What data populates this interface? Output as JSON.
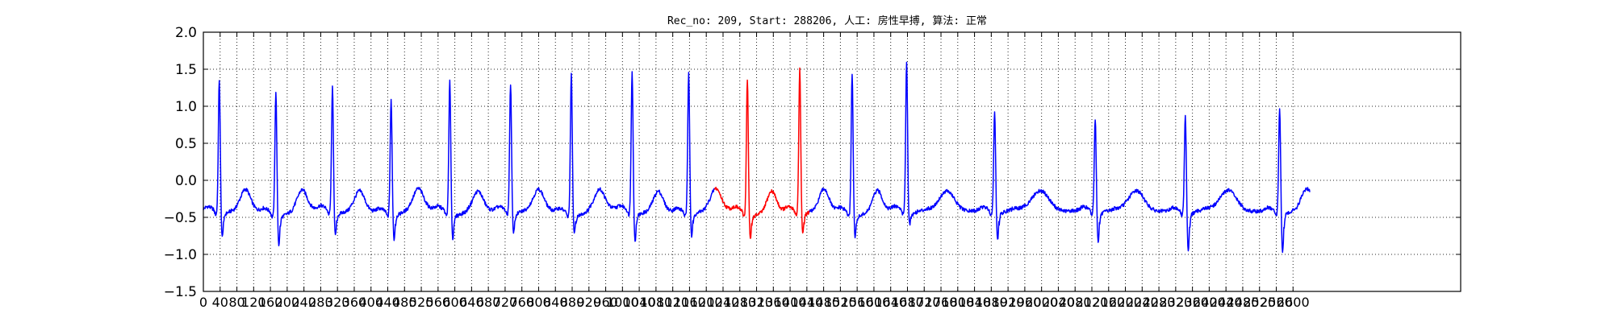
{
  "chart_data": {
    "type": "line",
    "title": "Rec_no: 209, Start: 288206, 人工: 房性早搏, 算法: 正常",
    "xlabel": "",
    "ylabel": "",
    "xlim": [
      0,
      3000
    ],
    "ylim": [
      -1.5,
      2.0
    ],
    "grid": true,
    "x_ticks": [
      0,
      40,
      80,
      120,
      160,
      200,
      240,
      280,
      320,
      360,
      400,
      440,
      480,
      520,
      560,
      600,
      640,
      680,
      720,
      760,
      800,
      840,
      880,
      920,
      960,
      1000,
      1040,
      1080,
      1120,
      1160,
      1200,
      1240,
      1280,
      1320,
      1360,
      1400,
      1440,
      1480,
      1520,
      1560,
      1600,
      1640,
      1680,
      1720,
      1760,
      1800,
      1840,
      1880,
      1920,
      1960,
      2000,
      2040,
      2080,
      2120,
      2160,
      2200,
      2240,
      2280,
      2320,
      2360,
      2400,
      2440,
      2480,
      2520,
      2560,
      2600
    ],
    "x_tick_labels": [
      "0",
      "40",
      "80",
      "120",
      "160",
      "200",
      "240",
      "280",
      "320",
      "360",
      "400",
      "440",
      "480",
      "520",
      "560",
      "600",
      "640",
      "680",
      "720",
      "760",
      "800",
      "840",
      "880",
      "920",
      "960",
      "1000",
      "1040",
      "1080",
      "1120",
      "1160",
      "1200",
      "1240",
      "1280",
      "1320",
      "1360",
      "1400",
      "1440",
      "1480",
      "1520",
      "1560",
      "1600",
      "1640",
      "1680",
      "1720",
      "1760",
      "1800",
      "1840",
      "1880",
      "1920",
      "1960",
      "2000",
      "2040",
      "2080",
      "2120",
      "2160",
      "2200",
      "2240",
      "2280",
      "2320",
      "2360",
      "2400",
      "2440",
      "2480",
      "2520",
      "2560",
      "2600"
    ],
    "y_ticks": [
      -1.5,
      -1.0,
      -0.5,
      0.0,
      0.5,
      1.0,
      1.5,
      2.0
    ],
    "y_tick_labels": [
      "−1.5",
      "−1.0",
      "−0.5",
      "0.0",
      "0.5",
      "1.0",
      "1.5",
      "2.0"
    ],
    "signal_end": 2640,
    "beats": [
      {
        "r": 40,
        "peak": 1.35,
        "trough": -0.8
      },
      {
        "r": 175,
        "peak": 1.22,
        "trough": -0.86
      },
      {
        "r": 310,
        "peak": 1.24,
        "trough": -0.78
      },
      {
        "r": 450,
        "peak": 1.09,
        "trough": -0.8
      },
      {
        "r": 590,
        "peak": 1.35,
        "trough": -0.79
      },
      {
        "r": 735,
        "peak": 1.3,
        "trough": -0.75
      },
      {
        "r": 880,
        "peak": 1.45,
        "trough": -0.72
      },
      {
        "r": 1025,
        "peak": 1.46,
        "trough": -0.84
      },
      {
        "r": 1160,
        "peak": 1.47,
        "trough": -0.77
      },
      {
        "r": 1300,
        "peak": 1.39,
        "trough": -0.8
      },
      {
        "r": 1425,
        "peak": 1.5,
        "trough": -0.76
      },
      {
        "r": 1550,
        "peak": 1.46,
        "trough": -0.76
      },
      {
        "r": 1680,
        "peak": 1.59,
        "trough": -0.62
      },
      {
        "r": 1890,
        "peak": 0.94,
        "trough": -0.83
      },
      {
        "r": 2130,
        "peak": 0.83,
        "trough": -0.85
      },
      {
        "r": 2345,
        "peak": 0.86,
        "trough": -0.96
      },
      {
        "r": 2570,
        "peak": 0.98,
        "trough": -0.99
      }
    ],
    "series": [
      {
        "color": "#0000ff",
        "segments": [
          [
            0,
            1220
          ],
          [
            1445,
            2640
          ]
        ]
      },
      {
        "color": "#ff0000",
        "segments": [
          [
            1220,
            1445
          ]
        ]
      }
    ]
  }
}
